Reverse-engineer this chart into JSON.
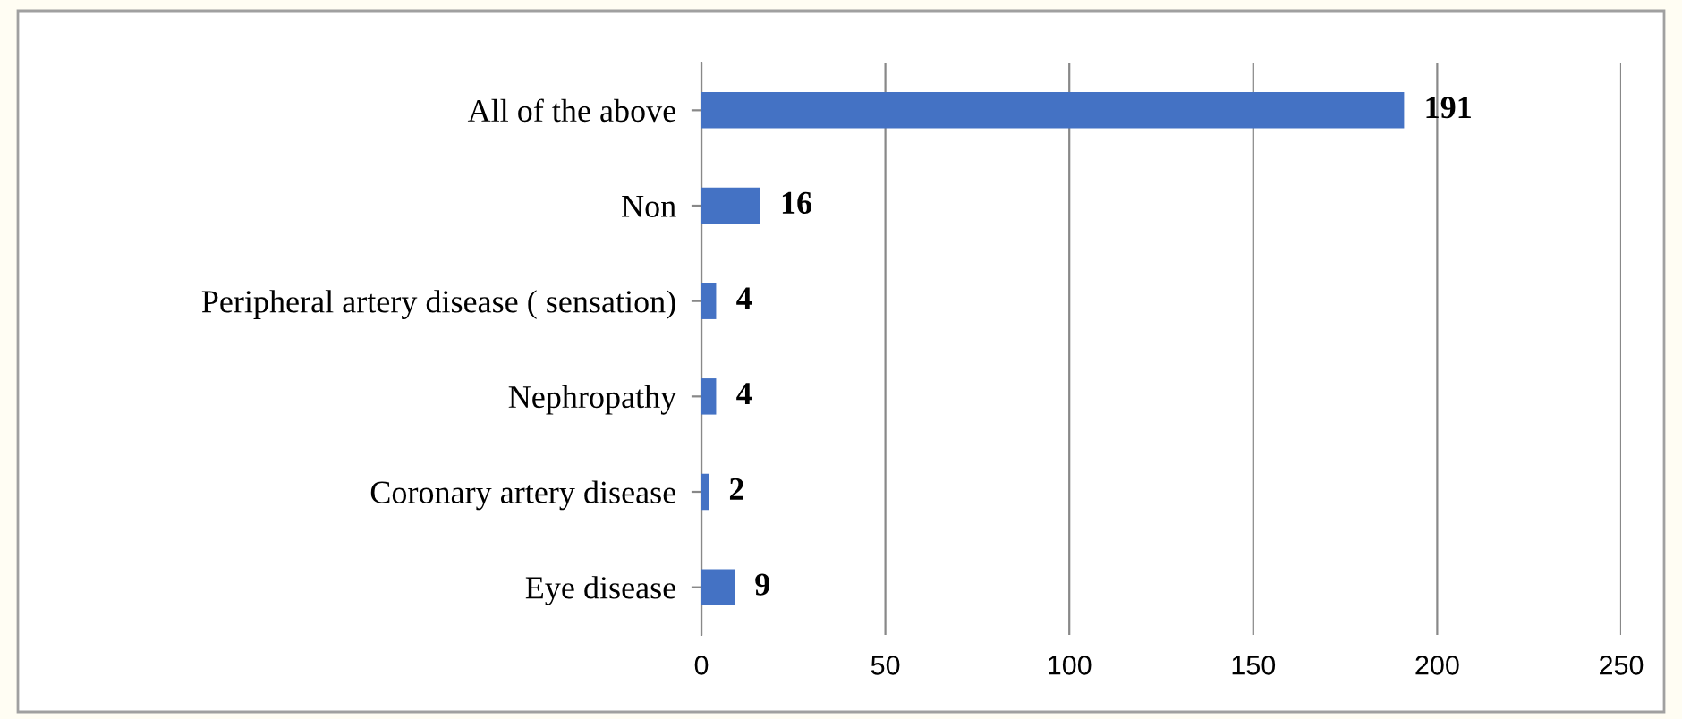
{
  "chart_data": {
    "type": "bar",
    "orientation": "horizontal",
    "categories": [
      "All of the above",
      "Non",
      "Peripheral artery disease ( sensation)",
      "Nephropathy",
      "Coronary artery disease",
      "Eye disease"
    ],
    "values": [
      191,
      16,
      4,
      4,
      2,
      9
    ],
    "color": "#4472c4",
    "xlim": [
      0,
      250
    ],
    "xticks": [
      0,
      50,
      100,
      150,
      200,
      250
    ],
    "grid": "x",
    "data_labels": true
  }
}
